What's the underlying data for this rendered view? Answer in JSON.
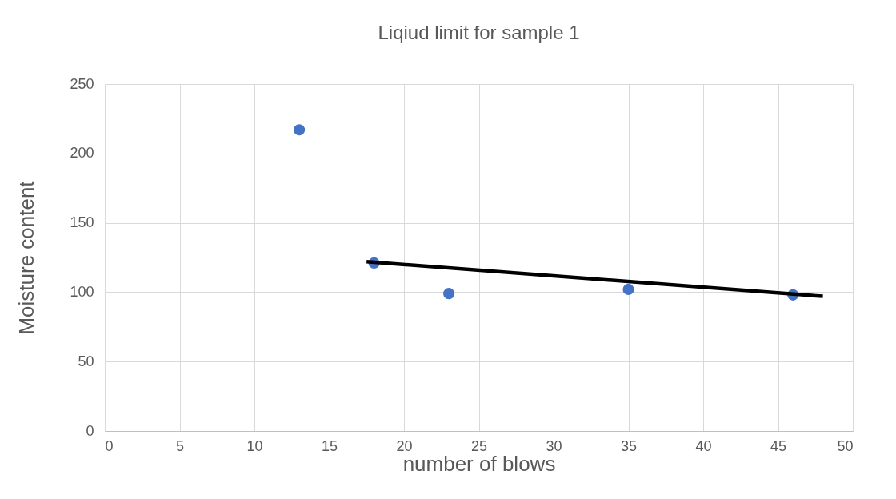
{
  "chart_data": {
    "type": "scatter",
    "title": "Liqiud limit for sample 1",
    "xlabel": "number of blows",
    "ylabel": "Moisture content",
    "xlim": [
      0,
      50
    ],
    "xticks": [
      0,
      5,
      10,
      15,
      20,
      25,
      30,
      35,
      40,
      45,
      50
    ],
    "ylim": [
      0,
      250
    ],
    "yticks": [
      0,
      50,
      100,
      150,
      200,
      250
    ],
    "grid": true,
    "series": [
      {
        "color": "#4472c4",
        "marker": "circle",
        "x": [
          13,
          18,
          23,
          35,
          46
        ],
        "values": [
          217,
          121,
          99,
          102,
          98
        ]
      },
      {
        "type": "line",
        "color": "#000000",
        "line_style": "solid",
        "marker": "none",
        "x": [
          17.5,
          48
        ],
        "values": [
          122,
          97
        ]
      }
    ]
  }
}
